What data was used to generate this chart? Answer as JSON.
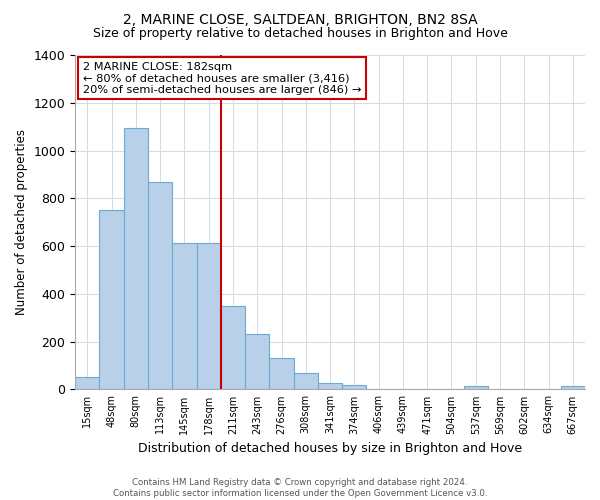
{
  "title": "2, MARINE CLOSE, SALTDEAN, BRIGHTON, BN2 8SA",
  "subtitle": "Size of property relative to detached houses in Brighton and Hove",
  "xlabel": "Distribution of detached houses by size in Brighton and Hove",
  "ylabel": "Number of detached properties",
  "bar_labels": [
    "15sqm",
    "48sqm",
    "80sqm",
    "113sqm",
    "145sqm",
    "178sqm",
    "211sqm",
    "243sqm",
    "276sqm",
    "308sqm",
    "341sqm",
    "374sqm",
    "406sqm",
    "439sqm",
    "471sqm",
    "504sqm",
    "537sqm",
    "569sqm",
    "602sqm",
    "634sqm",
    "667sqm"
  ],
  "bar_values": [
    50,
    750,
    1095,
    870,
    615,
    615,
    350,
    230,
    130,
    68,
    25,
    18,
    0,
    0,
    0,
    0,
    14,
    0,
    0,
    0,
    13
  ],
  "bar_color": "#b8d0e8",
  "bar_edge_color": "#6aaad4",
  "vline_x": 5.5,
  "vline_color": "#cc0000",
  "box_text_line1": "2 MARINE CLOSE: 182sqm",
  "box_text_line2": "← 80% of detached houses are smaller (3,416)",
  "box_text_line3": "20% of semi-detached houses are larger (846) →",
  "box_color": "#ffffff",
  "box_edge_color": "#cc0000",
  "footer_line1": "Contains HM Land Registry data © Crown copyright and database right 2024.",
  "footer_line2": "Contains public sector information licensed under the Open Government Licence v3.0.",
  "ylim": [
    0,
    1400
  ],
  "background_color": "#ffffff",
  "grid_color": "#d0dce8",
  "title_fontsize": 10,
  "subtitle_fontsize": 9
}
